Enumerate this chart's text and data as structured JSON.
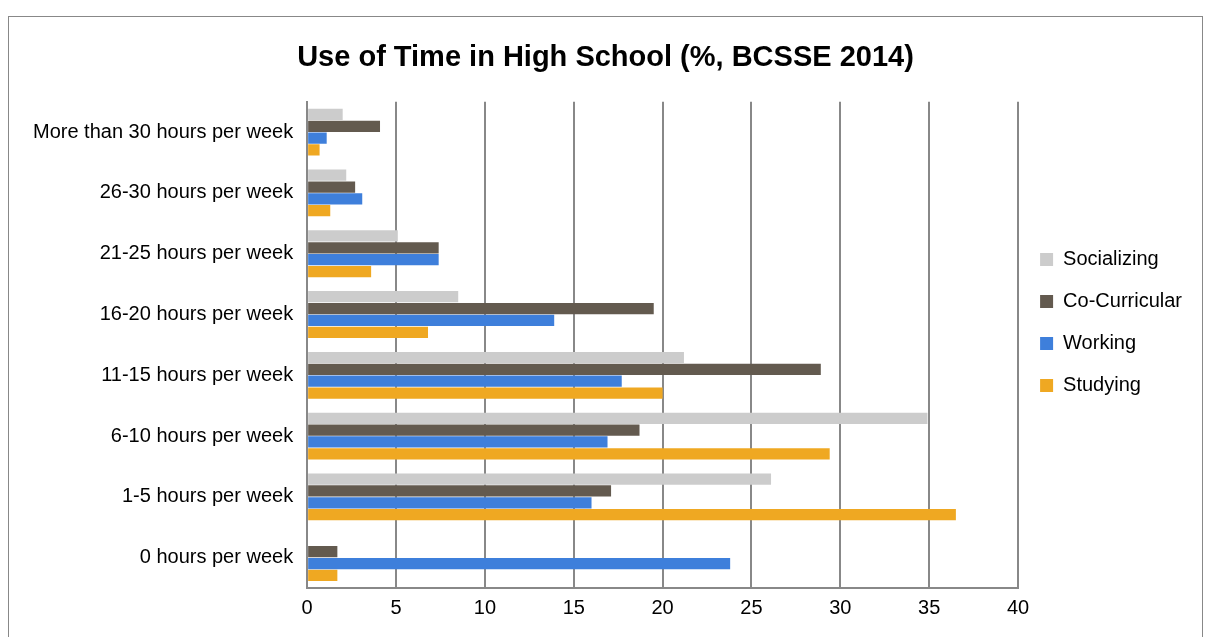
{
  "chart_data": {
    "type": "bar",
    "orientation": "horizontal",
    "title": "Use of Time in High School (%, BCSSE 2014)",
    "categories": [
      "More than 30 hours per week",
      "26-30 hours per week",
      "21-25 hours per week",
      "16-20 hours per week",
      "11-15 hours per week",
      "6-10 hours per week",
      "1-5 hours per week",
      "0 hours per week"
    ],
    "series": [
      {
        "name": "Socializing",
        "color": "#cccccc",
        "values": [
          2.0,
          2.2,
          5.1,
          8.5,
          21.2,
          34.9,
          26.1,
          null
        ]
      },
      {
        "name": "Co-Curricular",
        "color": "#635a4f",
        "values": [
          4.1,
          2.7,
          7.4,
          19.5,
          28.9,
          18.7,
          17.1,
          1.7
        ]
      },
      {
        "name": "Working",
        "color": "#3e7fdb",
        "values": [
          1.1,
          3.1,
          7.4,
          13.9,
          17.7,
          16.9,
          16.0,
          23.8
        ]
      },
      {
        "name": "Studying",
        "color": "#efa822",
        "values": [
          0.7,
          1.3,
          3.6,
          6.8,
          20.0,
          29.4,
          36.5,
          1.7
        ]
      }
    ],
    "xlim": [
      0,
      40
    ],
    "xticks": [
      0,
      5,
      10,
      15,
      20,
      25,
      30,
      35,
      40
    ],
    "grid": "x",
    "legend": "right"
  }
}
